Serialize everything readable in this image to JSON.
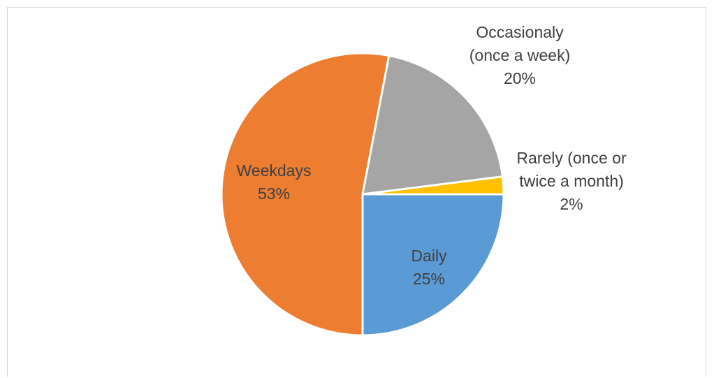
{
  "chart_data": {
    "type": "pie",
    "title": "",
    "slices": [
      {
        "name": "Daily",
        "value": 25,
        "label_lines": [
          "Daily",
          "25%"
        ],
        "color": "#5b9bd5"
      },
      {
        "name": "Weekdays",
        "value": 53,
        "label_lines": [
          "Weekdays",
          "53%"
        ],
        "color": "#ed7d31"
      },
      {
        "name": "Occasionaly (once a week)",
        "value": 20,
        "label_lines": [
          "Occasionaly",
          "(once a week)",
          "20%"
        ],
        "color": "#a5a5a5"
      },
      {
        "name": "Rarely (once or twice a month)",
        "value": 2,
        "label_lines": [
          "Rarely (once or",
          "twice a month)",
          "2%"
        ],
        "color": "#ffc000"
      }
    ],
    "start_angle_deg": 90,
    "direction": "clockwise",
    "legend": "none",
    "data_labels": "category name and percentage"
  }
}
